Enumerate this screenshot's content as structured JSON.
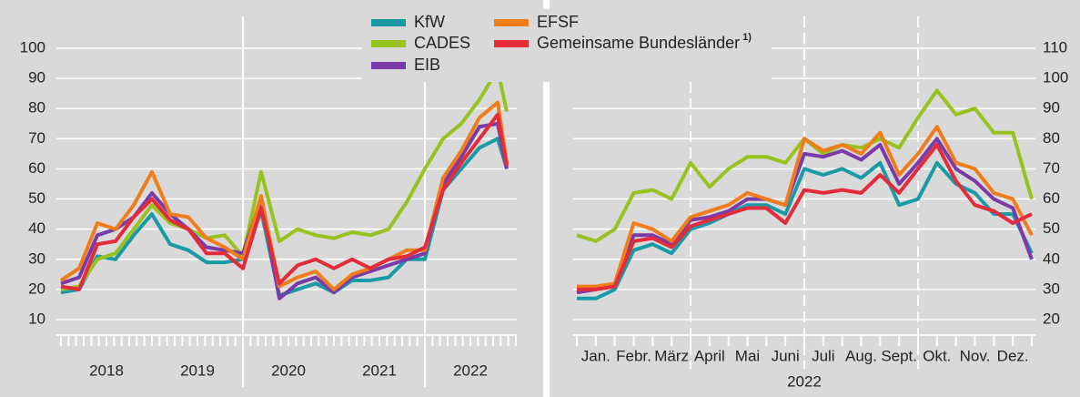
{
  "chart_data": [
    {
      "type": "line",
      "yaxis_side": "left",
      "grid": true,
      "xlim": [
        2018,
        2023
      ],
      "xticks": [
        {
          "value": 2018.5,
          "label": "2018"
        },
        {
          "value": 2019.5,
          "label": "2019"
        },
        {
          "value": 2020.5,
          "label": "2020"
        },
        {
          "value": 2021.5,
          "label": "2021"
        },
        {
          "value": 2022.5,
          "label": "2022"
        }
      ],
      "ylim": [
        10,
        100
      ],
      "yticks": [
        10,
        20,
        30,
        40,
        50,
        60,
        70,
        80,
        90,
        100
      ],
      "x": [
        2018.0,
        2018.2,
        2018.4,
        2018.6,
        2018.8,
        2019.0,
        2019.2,
        2019.4,
        2019.6,
        2019.8,
        2020.0,
        2020.2,
        2020.4,
        2020.6,
        2020.8,
        2021.0,
        2021.2,
        2021.4,
        2021.6,
        2021.8,
        2022.0,
        2022.2,
        2022.4,
        2022.6,
        2022.8,
        2022.9
      ],
      "series": [
        {
          "name": "KfW",
          "color": "#1a9aa5",
          "values": [
            19,
            20,
            31,
            30,
            38,
            45,
            35,
            33,
            29,
            29,
            30,
            46,
            18,
            20,
            22,
            19,
            23,
            23,
            24,
            30,
            30,
            53,
            60,
            67,
            70,
            60
          ]
        },
        {
          "name": "CADES",
          "color": "#97c21f",
          "values": [
            20,
            21,
            30,
            32,
            40,
            48,
            42,
            40,
            37,
            38,
            31,
            59,
            36,
            40,
            38,
            37,
            39,
            38,
            40,
            49,
            60,
            70,
            75,
            83,
            93,
            79
          ]
        },
        {
          "name": "EIB",
          "color": "#7a3aa8",
          "values": [
            22,
            24,
            38,
            40,
            44,
            52,
            45,
            40,
            34,
            33,
            32,
            50,
            17,
            22,
            24,
            19,
            24,
            26,
            28,
            30,
            32,
            55,
            64,
            74,
            75,
            60
          ]
        },
        {
          "name": "EFSF",
          "color": "#f07d1a",
          "values": [
            23,
            27,
            42,
            40,
            48,
            59,
            45,
            44,
            37,
            34,
            30,
            51,
            21,
            24,
            26,
            20,
            25,
            27,
            30,
            33,
            33,
            57,
            66,
            77,
            82,
            62
          ]
        },
        {
          "name": "Gemeinsame Bundesländer",
          "color": "#e32b3b",
          "values": [
            21,
            20,
            35,
            36,
            44,
            50,
            43,
            40,
            32,
            32,
            27,
            47,
            22,
            28,
            30,
            27,
            30,
            27,
            30,
            31,
            34,
            53,
            62,
            70,
            78,
            61
          ]
        }
      ]
    },
    {
      "type": "line",
      "yaxis_side": "right",
      "grid": true,
      "xlabel": "2022",
      "xlim": [
        0,
        12
      ],
      "xticks": [
        {
          "value": 0.5,
          "label": "Jan."
        },
        {
          "value": 1.5,
          "label": "Febr."
        },
        {
          "value": 2.5,
          "label": "März"
        },
        {
          "value": 3.5,
          "label": "April"
        },
        {
          "value": 4.5,
          "label": "Mai"
        },
        {
          "value": 5.5,
          "label": "Juni"
        },
        {
          "value": 6.5,
          "label": "Juli"
        },
        {
          "value": 7.5,
          "label": "Aug."
        },
        {
          "value": 8.5,
          "label": "Sept."
        },
        {
          "value": 9.5,
          "label": "Okt."
        },
        {
          "value": 10.5,
          "label": "Nov."
        },
        {
          "value": 11.5,
          "label": "Dez."
        }
      ],
      "ylim": [
        20,
        110
      ],
      "yticks": [
        20,
        30,
        40,
        50,
        60,
        70,
        80,
        90,
        100,
        110
      ],
      "x": [
        0,
        0.5,
        1,
        1.5,
        2,
        2.5,
        3,
        3.5,
        4,
        4.5,
        5,
        5.5,
        6,
        6.5,
        7,
        7.5,
        8,
        8.5,
        9,
        9.5,
        10,
        10.5,
        11,
        11.5,
        12
      ],
      "series": [
        {
          "name": "KfW",
          "color": "#1a9aa5",
          "values": [
            27,
            27,
            30,
            43,
            45,
            42,
            50,
            52,
            55,
            58,
            58,
            55,
            70,
            68,
            70,
            67,
            72,
            58,
            60,
            72,
            65,
            62,
            55,
            55,
            42
          ]
        },
        {
          "name": "CADES",
          "color": "#97c21f",
          "values": [
            48,
            46,
            50,
            62,
            63,
            60,
            72,
            64,
            70,
            74,
            74,
            72,
            80,
            75,
            78,
            77,
            80,
            77,
            87,
            96,
            88,
            90,
            82,
            82,
            60
          ]
        },
        {
          "name": "EIB",
          "color": "#7a3aa8",
          "values": [
            29,
            30,
            32,
            48,
            48,
            45,
            53,
            54,
            56,
            60,
            60,
            58,
            75,
            74,
            76,
            73,
            78,
            65,
            72,
            80,
            70,
            66,
            60,
            57,
            40
          ]
        },
        {
          "name": "EFSF",
          "color": "#f07d1a",
          "values": [
            31,
            31,
            32,
            52,
            50,
            46,
            54,
            56,
            58,
            62,
            60,
            58,
            80,
            76,
            78,
            75,
            82,
            68,
            75,
            84,
            72,
            70,
            62,
            60,
            48
          ]
        },
        {
          "name": "Gemeinsame Bundesländer",
          "color": "#e32b3b",
          "values": [
            30,
            30,
            31,
            46,
            47,
            44,
            51,
            53,
            55,
            57,
            57,
            52,
            63,
            62,
            63,
            62,
            68,
            62,
            70,
            78,
            66,
            58,
            56,
            52,
            55
          ]
        }
      ]
    }
  ],
  "legend_footnote": "1)"
}
